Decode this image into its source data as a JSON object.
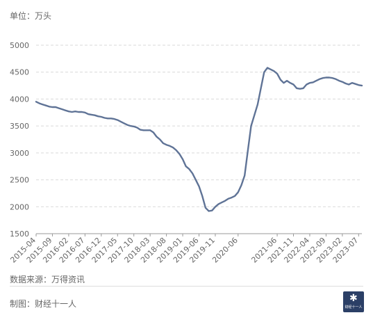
{
  "header": {
    "unit": "单位：万头"
  },
  "footer": {
    "source": "数据来源：万得资讯",
    "maker": "制图：财经十一人",
    "logo_text": "财经十一人"
  },
  "colors": {
    "line": "#5f7396",
    "grid": "#d9d9d9",
    "axis": "#999999"
  },
  "chart_data": {
    "type": "line",
    "title": "",
    "xlabel": "",
    "ylabel": "单位：万头",
    "ylim": [
      1500,
      5000
    ],
    "yticks": [
      1500,
      2000,
      2500,
      3000,
      3500,
      4000,
      4500,
      5000
    ],
    "grid": true,
    "x_tick_labels": [
      "2015-04",
      "2015-09",
      "2016-02",
      "2016-07",
      "2016-12",
      "2017-05",
      "2017-10",
      "2018-03",
      "2018-08",
      "2019-01",
      "2019-06",
      "2019-11",
      "2020-06",
      "2021-06",
      "2021-11",
      "2022-04",
      "2022-09",
      "2023-02",
      "2023-07"
    ],
    "series": [
      {
        "name": "",
        "x": [
          "2015-04",
          "2015-05",
          "2015-06",
          "2015-07",
          "2015-08",
          "2015-09",
          "2015-10",
          "2015-11",
          "2015-12",
          "2016-01",
          "2016-02",
          "2016-03",
          "2016-04",
          "2016-05",
          "2016-06",
          "2016-07",
          "2016-08",
          "2016-09",
          "2016-10",
          "2016-11",
          "2016-12",
          "2017-01",
          "2017-02",
          "2017-03",
          "2017-04",
          "2017-05",
          "2017-06",
          "2017-07",
          "2017-08",
          "2017-09",
          "2017-10",
          "2017-11",
          "2017-12",
          "2018-01",
          "2018-02",
          "2018-03",
          "2018-04",
          "2018-05",
          "2018-06",
          "2018-07",
          "2018-08",
          "2018-09",
          "2018-10",
          "2018-11",
          "2018-12",
          "2019-01",
          "2019-02",
          "2019-03",
          "2019-04",
          "2019-05",
          "2019-06",
          "2019-07",
          "2019-08",
          "2019-09",
          "2019-10",
          "2019-11",
          "2019-12",
          "2020-01",
          "2020-02",
          "2020-03",
          "2020-04",
          "2020-05",
          "2020-06",
          "2020-07",
          "2020-08",
          "2020-09",
          "2020-10",
          "2020-11",
          "2020-12",
          "2021-01",
          "2021-02",
          "2021-03",
          "2021-04",
          "2021-05",
          "2021-06",
          "2021-07",
          "2021-08",
          "2021-09",
          "2021-10",
          "2021-11",
          "2021-12",
          "2022-01",
          "2022-02",
          "2022-03",
          "2022-04",
          "2022-05",
          "2022-06",
          "2022-07",
          "2022-08",
          "2022-09",
          "2022-10",
          "2022-11",
          "2022-12",
          "2023-01",
          "2023-02",
          "2023-03",
          "2023-04",
          "2023-05",
          "2023-06",
          "2023-07",
          "2023-08"
        ],
        "values": [
          3950,
          3920,
          3900,
          3880,
          3860,
          3850,
          3850,
          3830,
          3810,
          3790,
          3770,
          3760,
          3770,
          3760,
          3760,
          3750,
          3720,
          3710,
          3700,
          3680,
          3670,
          3650,
          3640,
          3640,
          3630,
          3610,
          3580,
          3550,
          3520,
          3500,
          3490,
          3470,
          3430,
          3420,
          3420,
          3420,
          3380,
          3300,
          3250,
          3180,
          3150,
          3130,
          3100,
          3050,
          2980,
          2880,
          2750,
          2700,
          2620,
          2500,
          2380,
          2200,
          1980,
          1920,
          1930,
          2000,
          2050,
          2080,
          2110,
          2150,
          2170,
          2200,
          2270,
          2400,
          2580,
          3050,
          3500,
          3700,
          3900,
          4200,
          4500,
          4580,
          4550,
          4520,
          4470,
          4360,
          4300,
          4340,
          4300,
          4270,
          4200,
          4190,
          4200,
          4270,
          4300,
          4310,
          4340,
          4370,
          4390,
          4400,
          4400,
          4390,
          4370,
          4340,
          4320,
          4290,
          4270,
          4300,
          4280,
          4260,
          4250
        ]
      }
    ]
  }
}
